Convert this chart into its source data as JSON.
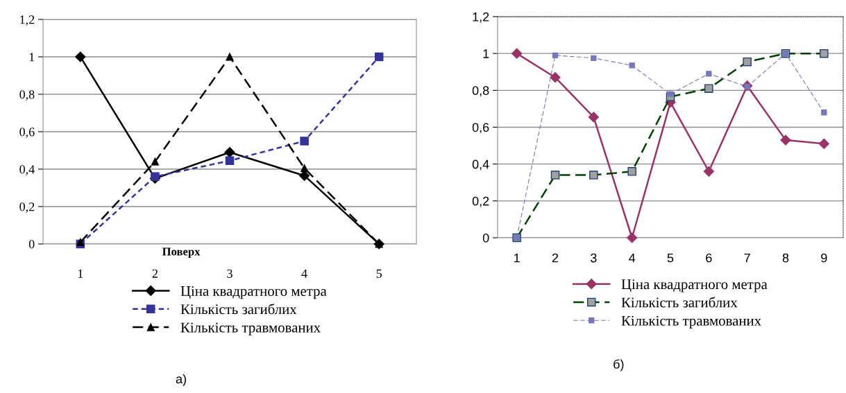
{
  "chart_data": [
    {
      "type": "line",
      "xlabel": "Поверх",
      "categories": [
        "1",
        "2",
        "3",
        "4",
        "5"
      ],
      "series": [
        {
          "name": "Ціна квадратного метра",
          "color": "#000000",
          "marker": "diamond",
          "line_style": "solid",
          "values": [
            1,
            0.35,
            0.49,
            0.365,
            0
          ]
        },
        {
          "name": "Кількість загиблих",
          "color": "#333399",
          "marker": "square",
          "line_style": "dotted",
          "values": [
            0,
            0.36,
            0.445,
            0.55,
            1
          ]
        },
        {
          "name": "Кількість травмованих",
          "color": "#000000",
          "marker": "triangle",
          "line_style": "dashed",
          "values": [
            0.01,
            0.44,
            1,
            0.405,
            0
          ]
        }
      ],
      "ylim": [
        0,
        1.2
      ],
      "yticks": [
        0,
        {
          "value": 0.2,
          "label": "0,2"
        },
        {
          "value": 0.4,
          "label": "0,4"
        },
        {
          "value": 0.6,
          "label": "0,6"
        },
        {
          "value": 0.8,
          "label": "0,8"
        },
        1,
        {
          "value": 1.2,
          "label": "1,2"
        }
      ],
      "grid": "y",
      "legend": "bottom",
      "annotations": [
        "а)"
      ]
    },
    {
      "type": "line",
      "categories": [
        "1",
        "2",
        "3",
        "4",
        "5",
        "6",
        "7",
        "8",
        "9"
      ],
      "series": [
        {
          "name": "Ціна квадратного метра",
          "color": "#993366",
          "marker": "diamond",
          "line_style": "solid",
          "values": [
            1,
            0.87,
            0.655,
            0,
            0.735,
            0.36,
            0.825,
            0.53,
            0.51
          ]
        },
        {
          "name": "Кількість загиблих",
          "color": "#004000",
          "marker": "square",
          "line_style": "dashed",
          "values": [
            0,
            0.34,
            0.34,
            0.36,
            0.765,
            0.81,
            0.955,
            1,
            1
          ]
        },
        {
          "name": "Кількість травмованих",
          "color": "#7777bb",
          "marker": "square",
          "line_style": "dashed",
          "values": [
            0,
            0.99,
            0.975,
            0.935,
            0.78,
            0.89,
            0.82,
            1,
            0.68
          ]
        }
      ],
      "ylim": [
        0,
        1.2
      ],
      "yticks": [
        0,
        {
          "value": 0.2,
          "label": "0,2"
        },
        {
          "value": 0.4,
          "label": "0,4"
        },
        {
          "value": 0.6,
          "label": "0,6"
        },
        {
          "value": 0.8,
          "label": "0,8"
        },
        1,
        {
          "value": 1.2,
          "label": "1,2"
        }
      ],
      "grid": "y",
      "legend": "bottom",
      "annotations": [
        "б)"
      ]
    }
  ]
}
